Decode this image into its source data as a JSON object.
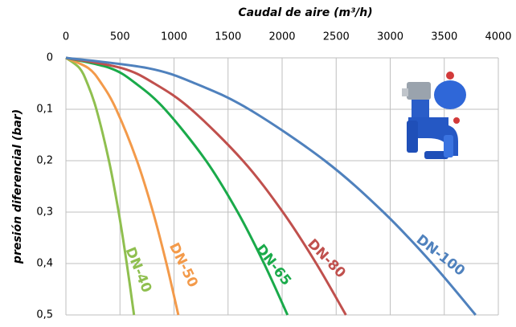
{
  "chart_data": {
    "type": "line",
    "title": "Caudal de aire (m³/h)",
    "y_label": "presión diferencial (bar)",
    "xlim": [
      0,
      4000
    ],
    "xticks": [
      0,
      500,
      1000,
      1500,
      2000,
      2500,
      3000,
      3500,
      4000
    ],
    "ylim": [
      0,
      0.5
    ],
    "yticks": [
      0,
      {
        "value": 0.1,
        "label": "0,1"
      },
      {
        "value": 0.2,
        "label": "0,2"
      },
      {
        "value": 0.3,
        "label": "0,3"
      },
      {
        "value": 0.4,
        "label": "0,4"
      },
      {
        "value": 0.5,
        "label": "0,5"
      }
    ],
    "y_inverted": true,
    "grid": true,
    "series": [
      {
        "name": "DN-40",
        "color": "#8fbf4f",
        "x": [
          0,
          126,
          199,
          282,
          398,
          488,
          563,
          630
        ],
        "values": [
          0,
          0.02,
          0.05,
          0.1,
          0.2,
          0.3,
          0.4,
          0.5
        ]
      },
      {
        "name": "DN-50",
        "color": "#f39a4a",
        "x": [
          0,
          208,
          329,
          465,
          657,
          806,
          930,
          1040
        ],
        "values": [
          0,
          0.02,
          0.05,
          0.1,
          0.2,
          0.3,
          0.4,
          0.5
        ]
      },
      {
        "name": "DN-65",
        "color": "#1aaa4a",
        "x": [
          0,
          410,
          648,
          916,
          1296,
          1589,
          1833,
          2050
        ],
        "values": [
          0,
          0.02,
          0.05,
          0.1,
          0.2,
          0.3,
          0.4,
          0.5
        ]
      },
      {
        "name": "DN-80",
        "color": "#c0504d",
        "x": [
          0,
          518,
          819,
          1158,
          1637,
          2007,
          2316,
          2590
        ],
        "values": [
          0,
          0.02,
          0.05,
          0.1,
          0.2,
          0.3,
          0.4,
          0.5
        ]
      },
      {
        "name": "DN-100",
        "color": "#4f81bd",
        "x": [
          0,
          758,
          1198,
          1694,
          2395,
          2937,
          3389,
          3790
        ],
        "values": [
          0,
          0.02,
          0.05,
          0.1,
          0.2,
          0.3,
          0.4,
          0.5
        ]
      }
    ]
  }
}
